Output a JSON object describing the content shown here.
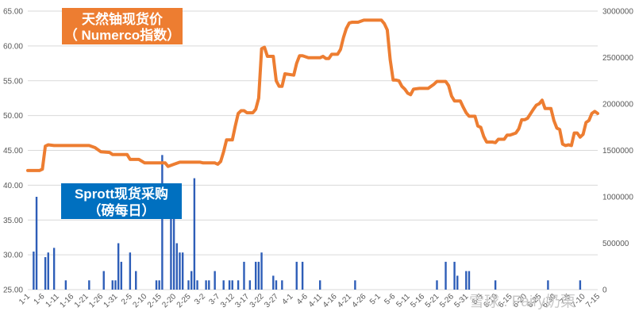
{
  "chart_data": {
    "type": "bar+line",
    "title_line": [
      "天然铀现货价",
      "（ Numerco指数）"
    ],
    "title_bar": [
      "Sprott现货采购",
      "（磅每日）"
    ],
    "colors": {
      "line": "#ed7d31",
      "bar": "#2e5eb8",
      "line_box": "#ed7d31",
      "bar_box": "#0070c0",
      "grid": "#d9d9d9"
    },
    "y_left": {
      "min": 25,
      "max": 65,
      "ticks": [
        "25.00",
        "30.00",
        "35.00",
        "40.00",
        "45.00",
        "50.00",
        "55.00",
        "60.00",
        "65.00"
      ]
    },
    "y_right": {
      "min": 0,
      "max": 3000000,
      "ticks": [
        "0",
        "500000",
        "1000000",
        "1500000",
        "2000000",
        "2500000",
        "3000000"
      ]
    },
    "x_labels": [
      "1-1",
      "1-6",
      "1-11",
      "1-16",
      "1-21",
      "1-26",
      "1-31",
      "2-5",
      "2-10",
      "2-15",
      "2-20",
      "2-25",
      "3-2",
      "3-7",
      "3-12",
      "3-17",
      "3-22",
      "3-27",
      "4-1",
      "4-6",
      "4-11",
      "4-16",
      "4-21",
      "4-26",
      "5-1",
      "5-6",
      "5-11",
      "5-16",
      "5-21",
      "5-26",
      "5-31",
      "6-5",
      "6-10",
      "6-15",
      "6-20",
      "6-25",
      "6-30",
      "7-5",
      "7-10",
      "7-15"
    ],
    "n_days": 196,
    "price_series": [
      [
        0,
        42.1
      ],
      [
        4,
        42.1
      ],
      [
        5,
        42.3
      ],
      [
        6,
        45.6
      ],
      [
        7,
        45.8
      ],
      [
        9,
        45.7
      ],
      [
        15,
        45.7
      ],
      [
        21,
        45.7
      ],
      [
        23,
        45.4
      ],
      [
        25,
        44.8
      ],
      [
        28,
        44.7
      ],
      [
        29,
        44.4
      ],
      [
        34,
        44.4
      ],
      [
        35,
        43.7
      ],
      [
        38,
        43.7
      ],
      [
        40,
        43.2
      ],
      [
        47,
        43.2
      ],
      [
        48,
        42.7
      ],
      [
        50,
        43.0
      ],
      [
        52,
        43.3
      ],
      [
        59,
        43.3
      ],
      [
        60,
        43.2
      ],
      [
        64,
        43.2
      ],
      [
        65,
        43.0
      ],
      [
        66,
        43.4
      ],
      [
        67,
        44.8
      ],
      [
        68,
        46.5
      ],
      [
        70,
        46.5
      ],
      [
        71,
        48.5
      ],
      [
        72,
        50.3
      ],
      [
        73,
        50.7
      ],
      [
        74,
        50.7
      ],
      [
        75,
        50.4
      ],
      [
        77,
        50.4
      ],
      [
        78,
        50.9
      ],
      [
        79,
        52.5
      ],
      [
        80,
        59.6
      ],
      [
        81,
        59.8
      ],
      [
        82,
        58.5
      ],
      [
        84,
        58.5
      ],
      [
        85,
        55.0
      ],
      [
        86,
        54.2
      ],
      [
        87,
        54.2
      ],
      [
        88,
        56.0
      ],
      [
        91,
        55.8
      ],
      [
        92,
        57.5
      ],
      [
        93,
        58.6
      ],
      [
        94,
        58.6
      ],
      [
        96,
        58.3
      ],
      [
        100,
        58.3
      ],
      [
        101,
        58.5
      ],
      [
        102,
        58.2
      ],
      [
        103,
        58.2
      ],
      [
        104,
        58.8
      ],
      [
        106,
        58.8
      ],
      [
        107,
        59.5
      ],
      [
        108,
        61.2
      ],
      [
        109,
        62.5
      ],
      [
        110,
        63.3
      ],
      [
        111,
        63.4
      ],
      [
        113,
        63.4
      ],
      [
        115,
        63.7
      ],
      [
        117,
        63.7
      ],
      [
        119,
        63.7
      ],
      [
        121,
        63.7
      ],
      [
        122,
        63.2
      ],
      [
        123,
        62.3
      ],
      [
        124,
        58.0
      ],
      [
        125,
        55.1
      ],
      [
        126,
        55.1
      ],
      [
        127,
        55.0
      ],
      [
        128,
        54.2
      ],
      [
        129,
        53.8
      ],
      [
        130,
        53.2
      ],
      [
        131,
        53.0
      ],
      [
        132,
        53.8
      ],
      [
        134,
        53.9
      ],
      [
        137,
        53.9
      ],
      [
        139,
        54.5
      ],
      [
        140,
        54.9
      ],
      [
        143,
        54.9
      ],
      [
        144,
        54.3
      ],
      [
        145,
        52.8
      ],
      [
        146,
        52.1
      ],
      [
        148,
        52.1
      ],
      [
        149,
        51.2
      ],
      [
        150,
        50.4
      ],
      [
        151,
        49.9
      ],
      [
        153,
        49.9
      ],
      [
        154,
        48.5
      ],
      [
        155,
        48.3
      ],
      [
        156,
        47.0
      ],
      [
        157,
        46.2
      ],
      [
        159,
        46.2
      ],
      [
        160,
        46.1
      ],
      [
        161,
        46.6
      ],
      [
        163,
        46.6
      ],
      [
        164,
        47.2
      ],
      [
        165,
        47.2
      ],
      [
        167,
        47.5
      ],
      [
        168,
        48.1
      ],
      [
        169,
        49.4
      ],
      [
        170,
        49.4
      ],
      [
        171,
        49.6
      ],
      [
        173,
        50.9
      ],
      [
        174,
        51.5
      ],
      [
        175,
        51.7
      ],
      [
        176,
        52.2
      ],
      [
        177,
        51.0
      ],
      [
        178,
        51.0
      ],
      [
        179,
        51.0
      ],
      [
        180,
        49.3
      ],
      [
        181,
        48.2
      ],
      [
        182,
        48.0
      ],
      [
        183,
        45.9
      ],
      [
        184,
        45.7
      ],
      [
        185,
        45.8
      ],
      [
        186,
        45.7
      ],
      [
        187,
        47.5
      ],
      [
        188,
        47.5
      ],
      [
        189,
        46.9
      ],
      [
        190,
        47.3
      ],
      [
        191,
        49.0
      ],
      [
        192,
        49.3
      ],
      [
        193,
        50.3
      ],
      [
        194,
        50.6
      ],
      [
        195,
        50.3
      ]
    ],
    "purchase_bars": [
      [
        2,
        410000
      ],
      [
        3,
        1000000
      ],
      [
        6,
        350000
      ],
      [
        7,
        400000
      ],
      [
        9,
        450000
      ],
      [
        13,
        100000
      ],
      [
        21,
        100000
      ],
      [
        26,
        200000
      ],
      [
        29,
        100000
      ],
      [
        30,
        100000
      ],
      [
        31,
        500000
      ],
      [
        32,
        300000
      ],
      [
        35,
        400000
      ],
      [
        37,
        200000
      ],
      [
        44,
        100000
      ],
      [
        45,
        100000
      ],
      [
        46,
        1450000
      ],
      [
        49,
        850000
      ],
      [
        50,
        950000
      ],
      [
        51,
        500000
      ],
      [
        52,
        400000
      ],
      [
        53,
        400000
      ],
      [
        55,
        100000
      ],
      [
        56,
        200000
      ],
      [
        57,
        1200000
      ],
      [
        58,
        100000
      ],
      [
        61,
        100000
      ],
      [
        62,
        100000
      ],
      [
        64,
        200000
      ],
      [
        67,
        100000
      ],
      [
        69,
        100000
      ],
      [
        70,
        100000
      ],
      [
        72,
        100000
      ],
      [
        74,
        300000
      ],
      [
        76,
        100000
      ],
      [
        78,
        300000
      ],
      [
        79,
        300000
      ],
      [
        80,
        400000
      ],
      [
        84,
        150000
      ],
      [
        85,
        100000
      ],
      [
        87,
        100000
      ],
      [
        92,
        300000
      ],
      [
        94,
        300000
      ],
      [
        100,
        100000
      ],
      [
        112,
        100000
      ],
      [
        140,
        100000
      ],
      [
        143,
        300000
      ],
      [
        146,
        300000
      ],
      [
        147,
        150000
      ],
      [
        150,
        200000
      ],
      [
        151,
        200000
      ],
      [
        160,
        100000
      ],
      [
        178,
        100000
      ],
      [
        189,
        100000
      ]
    ],
    "watermark": "雪球 : Fairy奶栗"
  }
}
